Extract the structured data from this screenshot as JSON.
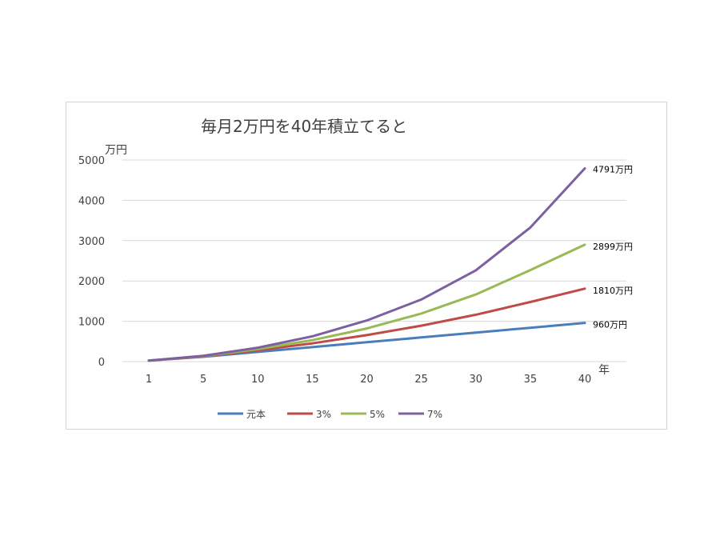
{
  "chart_data": {
    "type": "line",
    "title": "毎月2万円を40年積立てると",
    "ylabel": "万円",
    "xlabel": "年",
    "categories": [
      "1",
      "5",
      "10",
      "15",
      "20",
      "25",
      "30",
      "35",
      "40"
    ],
    "ylim": [
      0,
      5000
    ],
    "yticks": [
      "0",
      "1000",
      "2000",
      "3000",
      "4000",
      "5000"
    ],
    "grid": "horizontal",
    "legend_position": "bottom",
    "series": [
      {
        "name": "元本",
        "color": "#4a7ebb",
        "values": [
          24,
          120,
          240,
          360,
          480,
          600,
          720,
          840,
          960
        ],
        "end_label": "960万円"
      },
      {
        "name": "3%",
        "color": "#be4b48",
        "values": [
          24,
          129,
          279,
          453,
          656,
          890,
          1162,
          1478,
          1810
        ],
        "end_label": "1810万円"
      },
      {
        "name": "5%",
        "color": "#98b954",
        "values": [
          24,
          136,
          310,
          532,
          822,
          1192,
          1665,
          2270,
          2899
        ],
        "end_label": "2899万円"
      },
      {
        "name": "7%",
        "color": "#7d60a0",
        "values": [
          25,
          143,
          345,
          626,
          1020,
          1540,
          2264,
          3325,
          4791
        ],
        "end_label": "4791万円"
      }
    ]
  }
}
